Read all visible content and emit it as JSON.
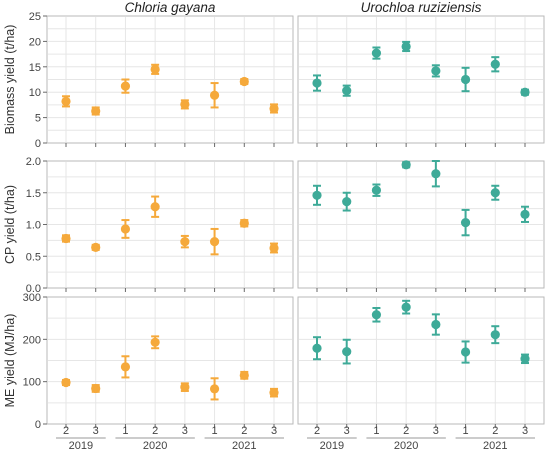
{
  "chart_data": {
    "type": "scatter",
    "columns": [
      {
        "title": "Chloria gayana",
        "color": "#f5a93b"
      },
      {
        "title": "Urochloa ruziziensis",
        "color": "#3eaa98"
      }
    ],
    "x_categories": [
      "2",
      "3",
      "1",
      "2",
      "3",
      "1",
      "2",
      "3"
    ],
    "year_groups": [
      {
        "label": "2019",
        "from": 0,
        "to": 1
      },
      {
        "label": "2020",
        "from": 2,
        "to": 4
      },
      {
        "label": "2021",
        "from": 5,
        "to": 7
      }
    ],
    "rows": [
      {
        "ylabel": "Biomass yield (t/ha)",
        "ylim": [
          0,
          25
        ],
        "yticks": [
          0,
          5,
          10,
          15,
          20,
          25
        ],
        "ytick_labels": [
          "0",
          "5",
          "10",
          "15",
          "20",
          "25"
        ],
        "series": [
          {
            "values": [
              8.2,
              6.3,
              11.2,
              14.5,
              7.6,
              9.4,
              12.1,
              6.8
            ],
            "errors": [
              1.0,
              0.7,
              1.3,
              0.9,
              0.8,
              2.4,
              0.5,
              0.8
            ]
          },
          {
            "values": [
              11.8,
              10.3,
              17.7,
              19.0,
              14.2,
              12.5,
              15.5,
              10.0
            ],
            "errors": [
              1.5,
              1.0,
              1.1,
              0.9,
              1.1,
              2.3,
              1.4,
              0.5
            ]
          }
        ]
      },
      {
        "ylabel": "CP yield (t/ha)",
        "ylim": [
          0,
          2.0
        ],
        "yticks": [
          0,
          0.5,
          1.0,
          1.5,
          2.0
        ],
        "ytick_labels": [
          "0.0",
          "0.5",
          "1.0",
          "1.5",
          "2.0"
        ],
        "series": [
          {
            "values": [
              0.78,
              0.64,
              0.93,
              1.28,
              0.73,
              0.73,
              1.02,
              0.63
            ],
            "errors": [
              0.05,
              0.04,
              0.14,
              0.16,
              0.09,
              0.2,
              0.05,
              0.07
            ]
          },
          {
            "values": [
              1.46,
              1.36,
              1.54,
              1.94,
              1.8,
              1.03,
              1.5,
              1.16
            ],
            "errors": [
              0.15,
              0.14,
              0.09,
              0.04,
              0.2,
              0.2,
              0.11,
              0.12
            ]
          }
        ]
      },
      {
        "ylabel": "ME yield (MJ/ha)",
        "ylim": [
          0,
          300
        ],
        "yticks": [
          0,
          100,
          200,
          300
        ],
        "ytick_labels": [
          "0",
          "100",
          "200",
          "300"
        ],
        "series": [
          {
            "values": [
              98,
              84,
              135,
              193,
              87,
              83,
              115,
              74
            ],
            "errors": [
              6,
              8,
              25,
              14,
              9,
              25,
              8,
              9
            ]
          },
          {
            "values": [
              179,
              171,
              258,
              276,
              235,
              170,
              211,
              154
            ],
            "errors": [
              26,
              28,
              16,
              15,
              24,
              25,
              20,
              10
            ]
          }
        ]
      }
    ]
  }
}
